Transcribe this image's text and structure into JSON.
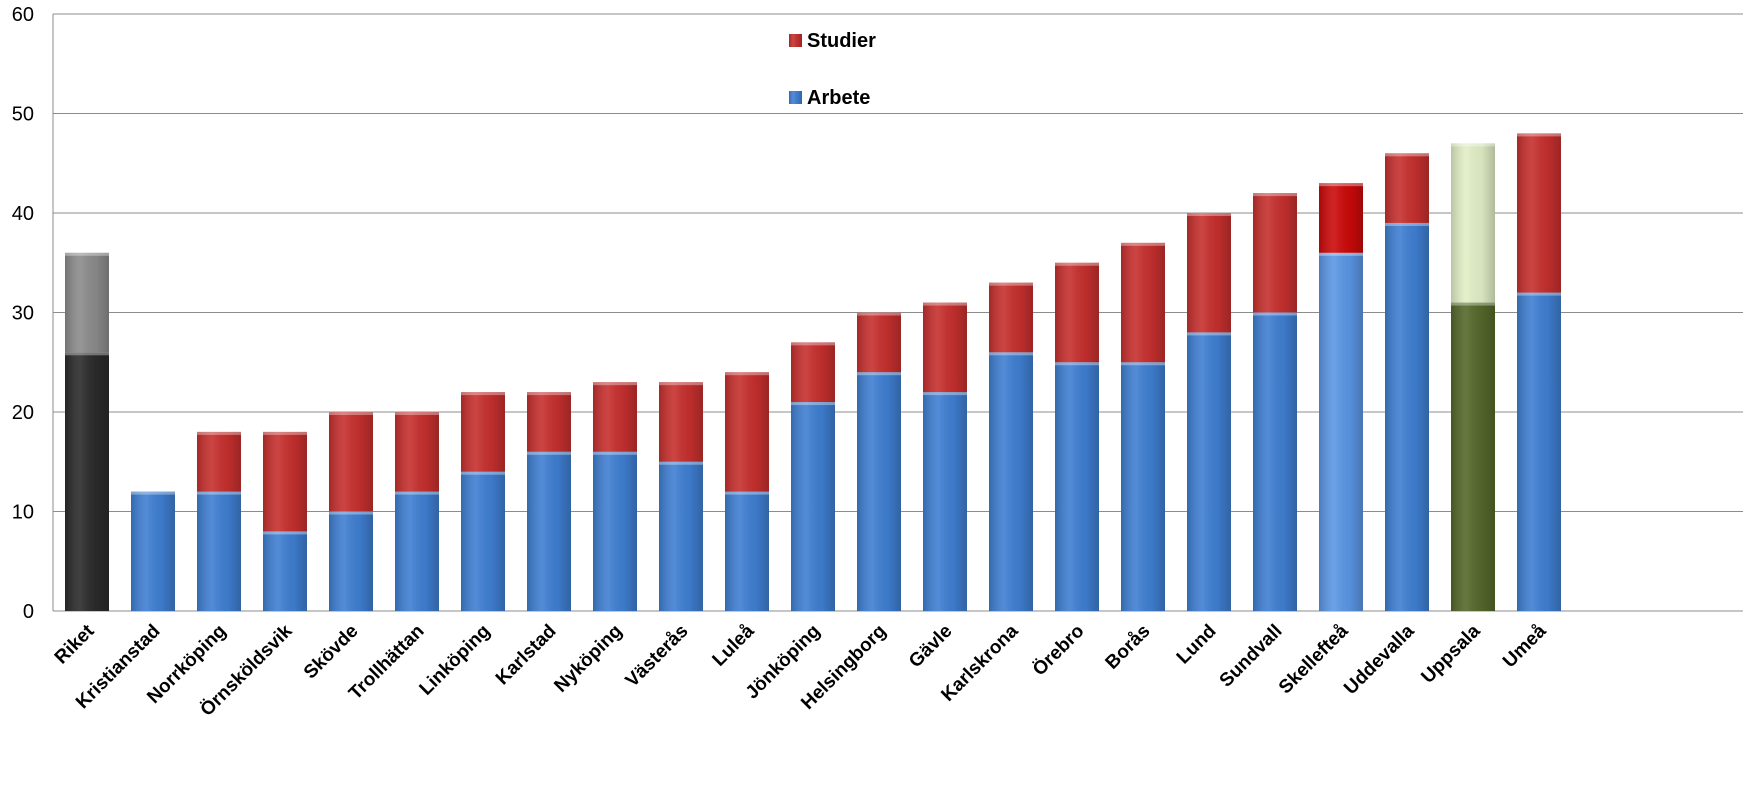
{
  "chart_data": {
    "type": "bar",
    "stacked": true,
    "title": "",
    "xlabel": "",
    "ylabel": "",
    "ylim": [
      0,
      60
    ],
    "yticks": [
      0,
      10,
      20,
      30,
      40,
      50,
      60
    ],
    "grid": true,
    "legend_position": "top-center",
    "categories": [
      "Riket",
      "Kristianstad",
      "Norrköping",
      "Örnsköldsvik",
      "Skövde",
      "Trollhättan",
      "Linköping",
      "Karlstad",
      "Nyköping",
      "Västerås",
      "Luleå",
      "Jönköping",
      "Helsingborg",
      "Gävle",
      "Karlskrona",
      "Örebro",
      "Borås",
      "Lund",
      "Sundvall",
      "Skellefteå",
      "Uddevalla",
      "Uppsala",
      "Umeå"
    ],
    "series": [
      {
        "name": "Arbete",
        "color": "#3f7fd2",
        "values": [
          26,
          12,
          12,
          8,
          10,
          12,
          14,
          16,
          16,
          15,
          12,
          21,
          24,
          22,
          26,
          25,
          25,
          28,
          30,
          36,
          39,
          31,
          32
        ]
      },
      {
        "name": "Studier",
        "color": "#c6302e",
        "values": [
          10,
          0,
          6,
          10,
          10,
          8,
          8,
          6,
          7,
          8,
          12,
          6,
          6,
          9,
          7,
          10,
          12,
          12,
          12,
          7,
          7,
          16,
          16
        ]
      }
    ],
    "highlights": [
      {
        "category": "Riket",
        "Arbete_color": "#2b2b2b",
        "Studier_color": "#8c8c8c"
      },
      {
        "category": "Skellefteå",
        "Arbete_color": "#5b97e5",
        "Studier_color": "#cc0a0a"
      },
      {
        "category": "Uppsala",
        "Arbete_color": "#55692b",
        "Studier_color": "#e2efc6"
      }
    ],
    "legend_order": [
      "Studier",
      "Arbete"
    ]
  }
}
